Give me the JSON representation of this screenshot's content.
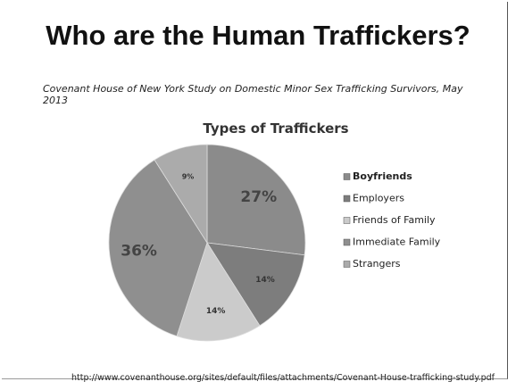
{
  "chart_data": {
    "type": "pie",
    "title": "Who are the Human Traffickers?",
    "subtitle": "Covenant House of New York Study on Domestic Minor Sex Trafficking Survivors, May 2013",
    "chart_title": "Types of Traffickers",
    "categories": [
      "Boyfriends",
      "Employers",
      "Friends of Family",
      "Immediate Family",
      "Strangers"
    ],
    "values": [
      27,
      14,
      14,
      36,
      9
    ],
    "value_labels": [
      "27%",
      "14%",
      "14%",
      "36%",
      "9%"
    ],
    "colors": [
      "#8b8b8b",
      "#7d7d7d",
      "#cbcbcb",
      "#8f8f8f",
      "#ababab"
    ],
    "legend": "right",
    "source": "http://www.covenanthouse.org/sites/default/files/attachments/Covenant-House-trafficking-study.pdf"
  }
}
